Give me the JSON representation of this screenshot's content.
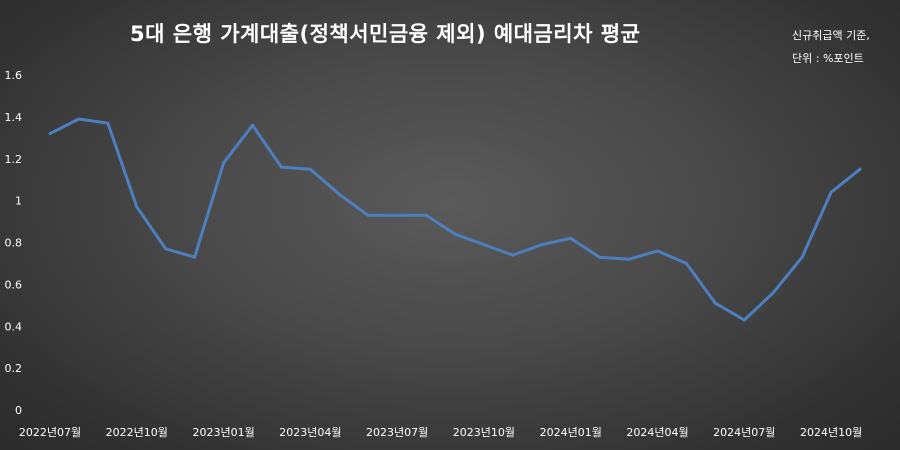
{
  "chart_data": {
    "type": "line",
    "title": "5대 은행 가계대출(정책서민금융 제외) 예대금리차 평균",
    "notes": [
      "신규취급액 기준,",
      "단위 : %포인트"
    ],
    "xlabel": "",
    "ylabel": "",
    "ylim": [
      0,
      1.6
    ],
    "y_ticks": [
      "0",
      "0.2",
      "0.4",
      "0.6",
      "0.8",
      "1",
      "1.2",
      "1.4",
      "1.6"
    ],
    "x_tick_labels": [
      "2022년07월",
      "2022년10월",
      "2023년01월",
      "2023년04월",
      "2023년07월",
      "2023년10월",
      "2024년01월",
      "2024년04월",
      "2024년07월",
      "2024년10월"
    ],
    "x": [
      "2022-07",
      "2022-08",
      "2022-09",
      "2022-10",
      "2022-11",
      "2022-12",
      "2023-01",
      "2023-02",
      "2023-03",
      "2023-04",
      "2023-05",
      "2023-06",
      "2023-07",
      "2023-08",
      "2023-09",
      "2023-10",
      "2023-11",
      "2023-12",
      "2024-01",
      "2024-02",
      "2024-03",
      "2024-04",
      "2024-05",
      "2024-06",
      "2024-07",
      "2024-08",
      "2024-09",
      "2024-10",
      "2024-11"
    ],
    "series": [
      {
        "values": [
          1.32,
          1.39,
          1.37,
          0.97,
          0.77,
          0.73,
          1.18,
          1.36,
          1.16,
          1.15,
          1.03,
          0.93,
          0.93,
          0.93,
          0.84,
          0.79,
          0.74,
          0.79,
          0.82,
          0.73,
          0.72,
          0.76,
          0.7,
          0.51,
          0.43,
          0.56,
          0.73,
          1.04,
          1.15
        ]
      }
    ],
    "line_color": "#4d7fc0",
    "grid": false,
    "legend": "none"
  }
}
